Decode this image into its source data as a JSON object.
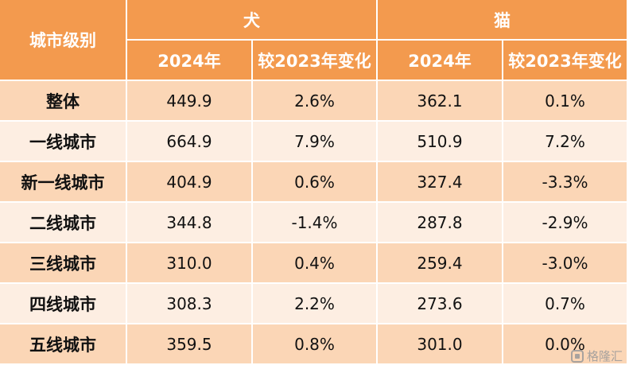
{
  "header": {
    "row_label": "城市级别",
    "groups": [
      "犬",
      "猫"
    ],
    "sub": [
      "2024年",
      "较2023年变化",
      "2024年",
      "较2023年变化"
    ]
  },
  "rows": [
    {
      "city": "整体",
      "dog_2024": "449.9",
      "dog_change": "2.6%",
      "cat_2024": "362.1",
      "cat_change": "0.1%"
    },
    {
      "city": "一线城市",
      "dog_2024": "664.9",
      "dog_change": "7.9%",
      "cat_2024": "510.9",
      "cat_change": "7.2%"
    },
    {
      "city": "新一线城市",
      "dog_2024": "404.9",
      "dog_change": "0.6%",
      "cat_2024": "327.4",
      "cat_change": "-3.3%"
    },
    {
      "city": "二线城市",
      "dog_2024": "344.8",
      "dog_change": "-1.4%",
      "cat_2024": "287.8",
      "cat_change": "-2.9%"
    },
    {
      "city": "三线城市",
      "dog_2024": "310.0",
      "dog_change": "0.4%",
      "cat_2024": "259.4",
      "cat_change": "-3.0%"
    },
    {
      "city": "四线城市",
      "dog_2024": "308.3",
      "dog_change": "2.2%",
      "cat_2024": "273.6",
      "cat_change": "0.7%"
    },
    {
      "city": "五线城市",
      "dog_2024": "359.5",
      "dog_change": "0.8%",
      "cat_2024": "301.0",
      "cat_change": "0.0%"
    }
  ],
  "watermark": "格隆汇",
  "colors": {
    "header": "#f39a4e",
    "row_dark": "#fbd6b6",
    "row_light": "#fdeee2"
  }
}
